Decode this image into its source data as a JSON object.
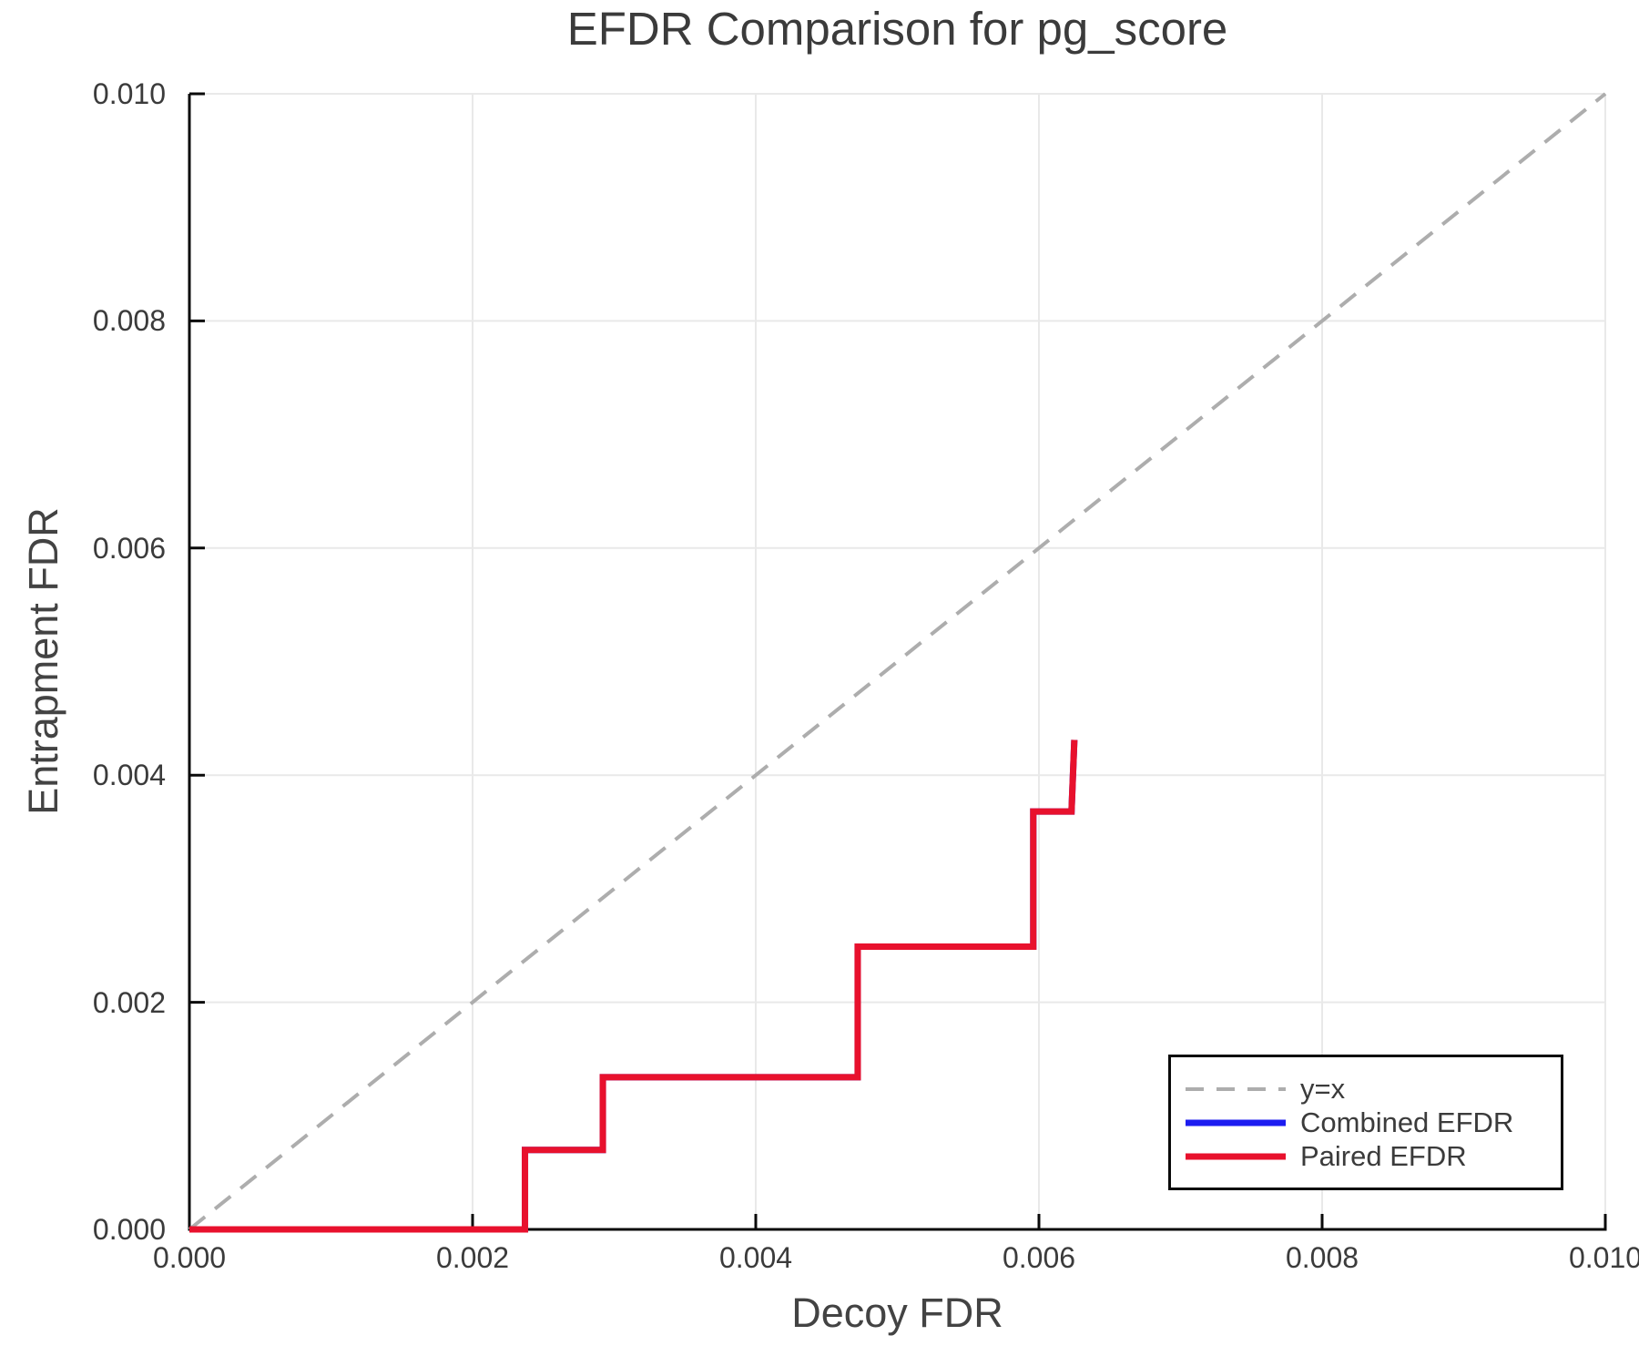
{
  "chart_data": {
    "type": "line",
    "title": "EFDR Comparison for pg_score",
    "xlabel": "Decoy FDR",
    "ylabel": "Entrapment FDR",
    "xlim": [
      0.0,
      0.01
    ],
    "ylim": [
      0.0,
      0.01
    ],
    "xticks": [
      0.0,
      0.002,
      0.004,
      0.006,
      0.008,
      0.01
    ],
    "yticks": [
      0.0,
      0.002,
      0.004,
      0.006,
      0.008,
      0.01
    ],
    "tick_decimals": 3,
    "grid": true,
    "legend_position": "bottom-right",
    "series": [
      {
        "name": "y=x",
        "style": "dashed",
        "color": "#adadad",
        "linewidth": 4,
        "x": [
          0.0,
          0.01
        ],
        "y": [
          0.0,
          0.01
        ]
      },
      {
        "name": "Combined EFDR",
        "style": "solid",
        "color": "#1c1cf0",
        "linewidth": 7,
        "note": "curve coincides with Paired EFDR and is hidden beneath it",
        "x": [
          0.0,
          0.00237,
          0.00237,
          0.00292,
          0.00292,
          0.00472,
          0.00472,
          0.00596,
          0.00596,
          0.00623,
          0.00625
        ],
        "y": [
          0.0,
          0.0,
          0.0007,
          0.0007,
          0.00134,
          0.00134,
          0.00249,
          0.00249,
          0.00368,
          0.00368,
          0.00431
        ]
      },
      {
        "name": "Paired EFDR",
        "style": "solid",
        "color": "#e8112d",
        "linewidth": 7,
        "x": [
          0.0,
          0.00237,
          0.00237,
          0.00292,
          0.00292,
          0.00472,
          0.00472,
          0.00596,
          0.00596,
          0.00623,
          0.00625
        ],
        "y": [
          0.0,
          0.0,
          0.0007,
          0.0007,
          0.00134,
          0.00134,
          0.00249,
          0.00249,
          0.00368,
          0.00368,
          0.00431
        ]
      }
    ]
  },
  "colors": {
    "grid": "#e9e9e9",
    "spine": "#0a0a0a",
    "text": "#3b3b3b"
  },
  "legend": {
    "entries": [
      {
        "label": "y=x"
      },
      {
        "label": "Combined EFDR"
      },
      {
        "label": "Paired EFDR"
      }
    ]
  }
}
